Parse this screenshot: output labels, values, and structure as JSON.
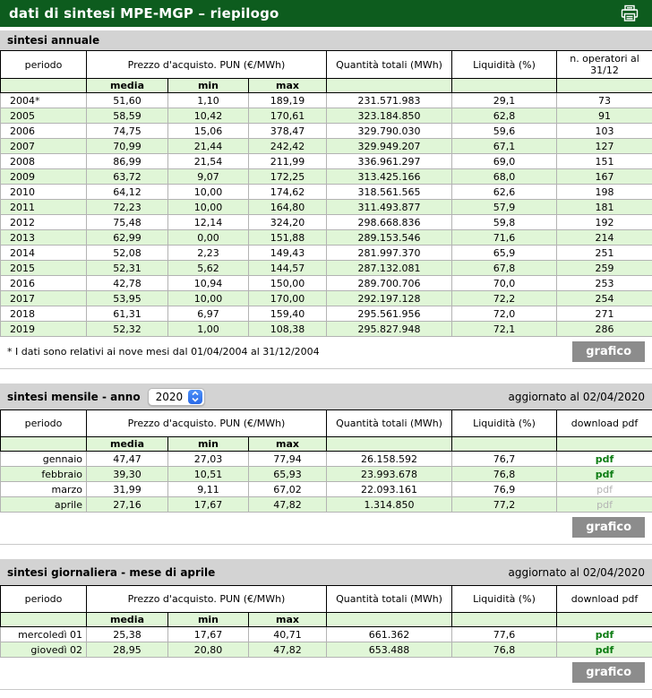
{
  "header": {
    "title": "dati di sintesi MPE-MGP – riepilogo"
  },
  "table_headers": {
    "periodo": "periodo",
    "prezzo": "Prezzo d'acquisto. PUN (€/MWh)",
    "media": "media",
    "min": "min",
    "max": "max",
    "quantita": "Quantità totali (MWh)",
    "liquidita": "Liquidità (%)",
    "operatori": "n. operatori al 31/12",
    "download": "download pdf"
  },
  "annual": {
    "title": "sintesi annuale",
    "footnote": "* I dati sono relativi ai nove mesi dal 01/04/2004 al 31/12/2004",
    "grafico_label": "grafico",
    "rows": [
      {
        "periodo": "2004*",
        "media": "51,60",
        "min": "1,10",
        "max": "189,19",
        "quantita": "231.571.983",
        "liquidita": "29,1",
        "operatori": "73"
      },
      {
        "periodo": "2005",
        "media": "58,59",
        "min": "10,42",
        "max": "170,61",
        "quantita": "323.184.850",
        "liquidita": "62,8",
        "operatori": "91"
      },
      {
        "periodo": "2006",
        "media": "74,75",
        "min": "15,06",
        "max": "378,47",
        "quantita": "329.790.030",
        "liquidita": "59,6",
        "operatori": "103"
      },
      {
        "periodo": "2007",
        "media": "70,99",
        "min": "21,44",
        "max": "242,42",
        "quantita": "329.949.207",
        "liquidita": "67,1",
        "operatori": "127"
      },
      {
        "periodo": "2008",
        "media": "86,99",
        "min": "21,54",
        "max": "211,99",
        "quantita": "336.961.297",
        "liquidita": "69,0",
        "operatori": "151"
      },
      {
        "periodo": "2009",
        "media": "63,72",
        "min": "9,07",
        "max": "172,25",
        "quantita": "313.425.166",
        "liquidita": "68,0",
        "operatori": "167"
      },
      {
        "periodo": "2010",
        "media": "64,12",
        "min": "10,00",
        "max": "174,62",
        "quantita": "318.561.565",
        "liquidita": "62,6",
        "operatori": "198"
      },
      {
        "periodo": "2011",
        "media": "72,23",
        "min": "10,00",
        "max": "164,80",
        "quantita": "311.493.877",
        "liquidita": "57,9",
        "operatori": "181"
      },
      {
        "periodo": "2012",
        "media": "75,48",
        "min": "12,14",
        "max": "324,20",
        "quantita": "298.668.836",
        "liquidita": "59,8",
        "operatori": "192"
      },
      {
        "periodo": "2013",
        "media": "62,99",
        "min": "0,00",
        "max": "151,88",
        "quantita": "289.153.546",
        "liquidita": "71,6",
        "operatori": "214"
      },
      {
        "periodo": "2014",
        "media": "52,08",
        "min": "2,23",
        "max": "149,43",
        "quantita": "281.997.370",
        "liquidita": "65,9",
        "operatori": "251"
      },
      {
        "periodo": "2015",
        "media": "52,31",
        "min": "5,62",
        "max": "144,57",
        "quantita": "287.132.081",
        "liquidita": "67,8",
        "operatori": "259"
      },
      {
        "periodo": "2016",
        "media": "42,78",
        "min": "10,94",
        "max": "150,00",
        "quantita": "289.700.706",
        "liquidita": "70,0",
        "operatori": "253"
      },
      {
        "periodo": "2017",
        "media": "53,95",
        "min": "10,00",
        "max": "170,00",
        "quantita": "292.197.128",
        "liquidita": "72,2",
        "operatori": "254"
      },
      {
        "periodo": "2018",
        "media": "61,31",
        "min": "6,97",
        "max": "159,40",
        "quantita": "295.561.956",
        "liquidita": "72,0",
        "operatori": "271"
      },
      {
        "periodo": "2019",
        "media": "52,32",
        "min": "1,00",
        "max": "108,38",
        "quantita": "295.827.948",
        "liquidita": "72,1",
        "operatori": "286"
      }
    ]
  },
  "monthly": {
    "title": "sintesi mensile - anno",
    "year": "2020",
    "updated": "aggiornato al 02/04/2020",
    "grafico_label": "grafico",
    "pdf_label": "pdf",
    "rows": [
      {
        "periodo": "gennaio",
        "media": "47,47",
        "min": "27,03",
        "max": "77,94",
        "quantita": "26.158.592",
        "liquidita": "76,7",
        "pdf": "pdf",
        "pdf_active": true
      },
      {
        "periodo": "febbraio",
        "media": "39,30",
        "min": "10,51",
        "max": "65,93",
        "quantita": "23.993.678",
        "liquidita": "76,8",
        "pdf": "pdf",
        "pdf_active": true
      },
      {
        "periodo": "marzo",
        "media": "31,99",
        "min": "9,11",
        "max": "67,02",
        "quantita": "22.093.161",
        "liquidita": "76,9",
        "pdf": "pdf",
        "pdf_active": false
      },
      {
        "periodo": "aprile",
        "media": "27,16",
        "min": "17,67",
        "max": "47,82",
        "quantita": "1.314.850",
        "liquidita": "77,2",
        "pdf": "pdf",
        "pdf_active": false
      }
    ]
  },
  "daily": {
    "title": "sintesi giornaliera - mese di aprile",
    "updated": "aggiornato al 02/04/2020",
    "grafico_label": "grafico",
    "rows": [
      {
        "periodo": "mercoledì 01",
        "media": "25,38",
        "min": "17,67",
        "max": "40,71",
        "quantita": "661.362",
        "liquidita": "77,6",
        "pdf": "pdf",
        "pdf_active": true
      },
      {
        "periodo": "giovedì 02",
        "media": "28,95",
        "min": "20,80",
        "max": "47,82",
        "quantita": "653.488",
        "liquidita": "76,8",
        "pdf": "pdf",
        "pdf_active": true
      }
    ]
  },
  "colors": {
    "header_green": "#0d5c1e",
    "row_green": "#e0f6d7",
    "section_gray": "#d3d3d3",
    "pdf_green": "#0e7d14",
    "pdf_disabled_gray": "#b4b4b4",
    "button_gray": "#8c8c8c"
  }
}
